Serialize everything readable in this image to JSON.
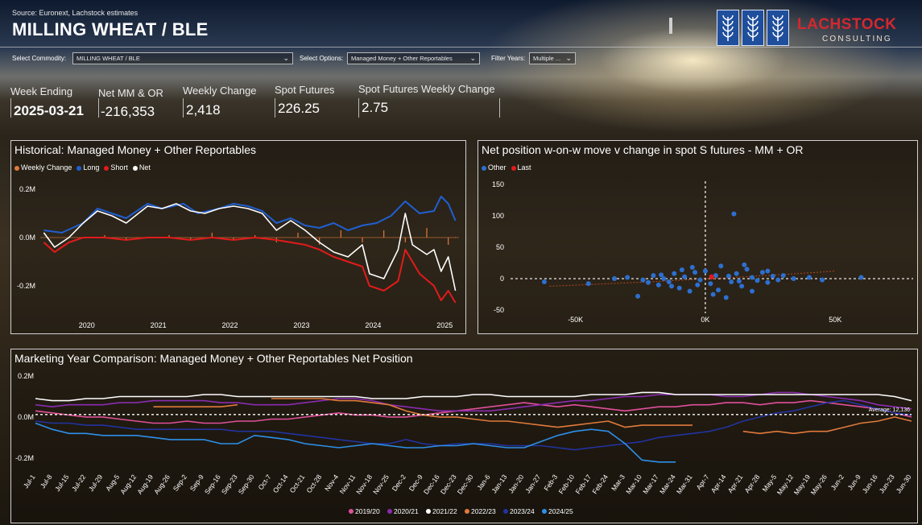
{
  "header": {
    "source": "Source: Euronext, Lachstock estimates",
    "title": "MILLING WHEAT / BLE",
    "logo_name": "LACHSTOCK",
    "logo_sub": "CONSULTING"
  },
  "filters": {
    "commodity_label": "Select Commodity:",
    "commodity_value": "MILLING WHEAT / BLE",
    "options_label": "Select Options:",
    "options_value": "Managed Money + Other Reportables",
    "years_label": "Filter Years:",
    "years_value": "Multiple ..."
  },
  "kpis": [
    {
      "label": "Week Ending",
      "value": "2025-03-21"
    },
    {
      "label": "Net MM & OR",
      "value": "-216,353"
    },
    {
      "label": "Weekly Change",
      "value": "2,418"
    },
    {
      "label": "Spot Futures",
      "value": "226.25"
    },
    {
      "label": "Spot Futures Weekly Change",
      "value": "2.75"
    }
  ],
  "colors": {
    "long": "#1f5fd1",
    "short": "#e01b1b",
    "net": "#ffffff",
    "weekly_change": "#e07a3c",
    "other": "#2d6fcf",
    "last": "#e01b1b",
    "y2019_20": "#e0509a",
    "y2020_21": "#8a2cb0",
    "y2021_22": "#ffffff",
    "y2022_23": "#e07a3c",
    "y2023_24": "#2233a0",
    "y2024_25": "#2d8fe8"
  },
  "chart_data": [
    {
      "type": "line",
      "title": "Historical: Managed Money + Other Reportables",
      "x": [
        "2020",
        "2021",
        "2022",
        "2023",
        "2024",
        "2025"
      ],
      "xlim": [
        2019.4,
        2025.25
      ],
      "ylim": [
        -0.3,
        0.24
      ],
      "yticks": [
        "0.2M",
        "0.0M",
        "-0.2M"
      ],
      "ytick_values": [
        0.2,
        0.0,
        -0.2
      ],
      "legend": "top-left",
      "series": [
        {
          "name": "Weekly Change",
          "x": [
            2019.45,
            2019.7,
            2020.0,
            2020.3,
            2020.6,
            2020.9,
            2021.2,
            2021.5,
            2021.8,
            2022.1,
            2022.4,
            2022.7,
            2023.0,
            2023.3,
            2023.6,
            2023.9,
            2024.2,
            2024.5,
            2024.8,
            2025.1,
            2025.2
          ],
          "values": [
            0.0,
            0.0,
            0.0,
            0.01,
            -0.01,
            0.0,
            0.01,
            -0.01,
            0.02,
            -0.01,
            0.01,
            -0.02,
            0.02,
            -0.03,
            0.03,
            -0.02,
            0.03,
            -0.02,
            0.04,
            -0.03,
            0.002
          ]
        },
        {
          "name": "Long",
          "x": [
            2019.45,
            2019.7,
            2020.0,
            2020.2,
            2020.4,
            2020.6,
            2020.9,
            2021.1,
            2021.4,
            2021.6,
            2021.9,
            2022.1,
            2022.3,
            2022.5,
            2022.7,
            2022.9,
            2023.1,
            2023.3,
            2023.5,
            2023.7,
            2023.9,
            2024.1,
            2024.3,
            2024.5,
            2024.7,
            2024.9,
            2025.0,
            2025.1,
            2025.2
          ],
          "values": [
            0.03,
            0.02,
            0.06,
            0.12,
            0.1,
            0.08,
            0.14,
            0.12,
            0.14,
            0.1,
            0.12,
            0.14,
            0.13,
            0.11,
            0.06,
            0.08,
            0.05,
            0.04,
            0.06,
            0.03,
            0.05,
            0.06,
            0.09,
            0.15,
            0.1,
            0.11,
            0.17,
            0.14,
            0.07
          ]
        },
        {
          "name": "Short",
          "x": [
            2019.45,
            2019.6,
            2019.8,
            2020.0,
            2020.3,
            2020.6,
            2020.9,
            2021.2,
            2021.5,
            2021.8,
            2022.1,
            2022.4,
            2022.7,
            2022.9,
            2023.1,
            2023.3,
            2023.5,
            2023.7,
            2023.9,
            2024.0,
            2024.2,
            2024.4,
            2024.5,
            2024.7,
            2024.9,
            2025.0,
            2025.1,
            2025.2
          ],
          "values": [
            -0.02,
            -0.06,
            -0.02,
            0.0,
            0.0,
            -0.01,
            0.0,
            0.0,
            -0.01,
            0.0,
            -0.01,
            0.0,
            -0.01,
            -0.02,
            -0.03,
            -0.05,
            -0.08,
            -0.1,
            -0.12,
            -0.2,
            -0.22,
            -0.18,
            -0.05,
            -0.15,
            -0.2,
            -0.26,
            -0.22,
            -0.27
          ]
        },
        {
          "name": "Net",
          "x": [
            2019.45,
            2019.6,
            2019.8,
            2020.0,
            2020.2,
            2020.4,
            2020.6,
            2020.9,
            2021.1,
            2021.3,
            2021.5,
            2021.7,
            2021.9,
            2022.1,
            2022.3,
            2022.5,
            2022.7,
            2022.9,
            2023.1,
            2023.3,
            2023.5,
            2023.7,
            2023.9,
            2024.0,
            2024.2,
            2024.4,
            2024.5,
            2024.6,
            2024.8,
            2024.9,
            2025.0,
            2025.1,
            2025.2
          ],
          "values": [
            0.02,
            -0.04,
            0.0,
            0.06,
            0.11,
            0.09,
            0.06,
            0.13,
            0.12,
            0.14,
            0.11,
            0.1,
            0.12,
            0.13,
            0.12,
            0.1,
            0.03,
            0.07,
            0.03,
            -0.02,
            -0.06,
            -0.08,
            -0.03,
            -0.15,
            -0.17,
            -0.05,
            0.1,
            -0.03,
            -0.07,
            -0.05,
            -0.14,
            -0.08,
            -0.22
          ]
        }
      ]
    },
    {
      "type": "scatter",
      "title": "Net position w-on-w move v change in spot S futures - MM + OR",
      "x": [
        -50000,
        0,
        50000
      ],
      "xticks": [
        "-50K",
        "0K",
        "50K"
      ],
      "yticks": [
        "150",
        "100",
        "50",
        "0",
        "-50"
      ],
      "ytick_values": [
        150,
        100,
        50,
        0,
        -50
      ],
      "xlim": [
        -75000,
        80000
      ],
      "ylim": [
        -55,
        155
      ],
      "legend": "top-left",
      "series": [
        {
          "name": "Other",
          "points": [
            [
              -62000,
              -5
            ],
            [
              -45000,
              -8
            ],
            [
              -30000,
              2
            ],
            [
              -26000,
              -28
            ],
            [
              -24000,
              -2
            ],
            [
              -20000,
              5
            ],
            [
              -18000,
              -10
            ],
            [
              -16000,
              0
            ],
            [
              -14000,
              -5
            ],
            [
              -12000,
              8
            ],
            [
              -10000,
              -15
            ],
            [
              -8000,
              3
            ],
            [
              -6000,
              -20
            ],
            [
              -4000,
              10
            ],
            [
              -2000,
              -2
            ],
            [
              0,
              12
            ],
            [
              2000,
              -8
            ],
            [
              4000,
              5
            ],
            [
              6000,
              20
            ],
            [
              8000,
              -30
            ],
            [
              10000,
              -5
            ],
            [
              12000,
              8
            ],
            [
              14000,
              -12
            ],
            [
              16000,
              15
            ],
            [
              18000,
              2
            ],
            [
              20000,
              -3
            ],
            [
              22000,
              10
            ],
            [
              24000,
              -6
            ],
            [
              26000,
              4
            ],
            [
              28000,
              -2
            ],
            [
              30000,
              5
            ],
            [
              34000,
              0
            ],
            [
              11000,
              103
            ],
            [
              -3000,
              -10
            ],
            [
              5000,
              -18
            ],
            [
              -9000,
              14
            ],
            [
              15000,
              22
            ],
            [
              -22000,
              -6
            ],
            [
              3000,
              -25
            ],
            [
              9000,
              4
            ],
            [
              -13000,
              -12
            ],
            [
              18000,
              -20
            ],
            [
              -35000,
              0
            ],
            [
              40000,
              2
            ],
            [
              45000,
              -2
            ],
            [
              60000,
              2
            ],
            [
              -17000,
              6
            ],
            [
              24000,
              12
            ],
            [
              13000,
              -4
            ],
            [
              -5000,
              18
            ]
          ]
        },
        {
          "name": "Last",
          "points": [
            [
              2418,
              2.75
            ]
          ]
        }
      ]
    },
    {
      "type": "line",
      "title": "Marketing Year Comparison: Managed Money + Other Reportables Net Position",
      "categories": [
        "Jul-1",
        "Jul-8",
        "Jul-15",
        "Jul-22",
        "Jul-29",
        "Aug-5",
        "Aug-12",
        "Aug-19",
        "Aug-26",
        "Sep-2",
        "Sep-9",
        "Sep-16",
        "Sep-23",
        "Sep-30",
        "Oct-7",
        "Oct-14",
        "Oct-21",
        "Oct-28",
        "Nov-4",
        "Nov-11",
        "Nov-18",
        "Nov-25",
        "Dec-2",
        "Dec-9",
        "Dec-16",
        "Dec-23",
        "Dec-30",
        "Jan-6",
        "Jan-13",
        "Jan-20",
        "Jan-27",
        "Feb-3",
        "Feb-10",
        "Feb-17",
        "Feb-24",
        "Mar-3",
        "Mar-10",
        "Mar-17",
        "Mar-24",
        "Mar-31",
        "Apr-7",
        "Apr-14",
        "Apr-21",
        "Apr-28",
        "May-5",
        "May-12",
        "May-19",
        "May-26",
        "Jun-2",
        "Jun-9",
        "Jun-16",
        "Jun-23",
        "Jun-30"
      ],
      "yticks": [
        "0.2M",
        "0.0M",
        "-0.2M"
      ],
      "ytick_values": [
        0.2,
        0.0,
        -0.2
      ],
      "ylim": [
        -0.26,
        0.22
      ],
      "reference_line": {
        "label": "Average: 12,136",
        "value": 0.012136
      },
      "legend": "bottom",
      "series": [
        {
          "name": "2019/20",
          "values": [
            0.03,
            0.02,
            0.01,
            0.0,
            0.0,
            -0.01,
            -0.02,
            -0.03,
            -0.03,
            -0.02,
            -0.03,
            -0.03,
            -0.02,
            -0.02,
            -0.01,
            -0.01,
            0.0,
            0.01,
            0.02,
            0.01,
            0.01,
            0.0,
            0.0,
            0.01,
            0.02,
            0.03,
            0.04,
            0.05,
            0.06,
            0.07,
            0.06,
            0.05,
            0.06,
            0.05,
            0.04,
            0.03,
            0.04,
            0.05,
            0.05,
            0.06,
            0.06,
            0.07,
            0.07,
            0.06,
            0.07,
            0.07,
            0.08,
            0.07,
            0.06,
            0.05,
            0.04,
            0.02,
            0.0
          ]
        },
        {
          "name": "2020/21",
          "values": [
            0.06,
            0.05,
            0.06,
            0.06,
            0.06,
            0.07,
            0.07,
            0.08,
            0.08,
            0.08,
            0.08,
            0.07,
            0.07,
            0.06,
            0.06,
            0.06,
            0.07,
            0.08,
            0.09,
            0.09,
            0.08,
            0.06,
            0.05,
            0.04,
            0.03,
            0.03,
            0.03,
            0.03,
            0.04,
            0.05,
            0.06,
            0.07,
            0.08,
            0.08,
            0.09,
            0.1,
            0.1,
            0.11,
            0.11,
            0.11,
            0.11,
            0.1,
            0.1,
            0.11,
            0.12,
            0.12,
            0.11,
            0.1,
            0.09,
            0.08,
            0.06,
            0.05,
            0.04
          ]
        },
        {
          "name": "2021/22",
          "values": [
            0.09,
            0.08,
            0.08,
            0.09,
            0.09,
            0.1,
            0.1,
            0.1,
            0.1,
            0.1,
            0.11,
            0.11,
            0.1,
            0.1,
            0.1,
            0.1,
            0.1,
            0.1,
            0.1,
            0.1,
            0.09,
            0.09,
            0.09,
            0.1,
            0.1,
            0.1,
            0.11,
            0.11,
            0.1,
            0.1,
            0.1,
            0.1,
            0.1,
            0.11,
            0.11,
            0.11,
            0.12,
            0.12,
            0.11,
            0.11,
            0.11,
            0.11,
            0.11,
            0.11,
            0.11,
            0.11,
            0.11,
            0.11,
            0.11,
            0.11,
            0.11,
            0.1,
            0.08
          ]
        },
        {
          "name": "2022/23",
          "values": [
            null,
            null,
            null,
            null,
            null,
            null,
            null,
            0.05,
            0.05,
            0.05,
            0.05,
            0.05,
            0.06,
            null,
            0.09,
            0.09,
            0.09,
            0.09,
            0.08,
            0.08,
            0.07,
            0.06,
            0.03,
            0.01,
            0.0,
            0.0,
            -0.01,
            -0.02,
            -0.02,
            -0.03,
            -0.04,
            -0.05,
            -0.04,
            -0.03,
            -0.02,
            -0.05,
            -0.04,
            -0.04,
            -0.04,
            -0.04,
            null,
            null,
            -0.07,
            -0.08,
            -0.07,
            -0.08,
            -0.07,
            -0.07,
            -0.05,
            -0.03,
            -0.02,
            0.0,
            -0.02
          ]
        },
        {
          "name": "2023/24",
          "values": [
            -0.02,
            -0.03,
            -0.03,
            -0.04,
            -0.04,
            -0.05,
            -0.06,
            -0.06,
            -0.06,
            -0.06,
            -0.06,
            -0.06,
            -0.07,
            -0.07,
            -0.07,
            -0.08,
            -0.09,
            -0.1,
            -0.11,
            -0.12,
            -0.13,
            -0.13,
            -0.11,
            -0.13,
            -0.14,
            -0.13,
            -0.13,
            -0.13,
            -0.14,
            -0.14,
            -0.14,
            -0.15,
            -0.16,
            -0.15,
            -0.14,
            -0.13,
            -0.12,
            -0.1,
            -0.09,
            -0.08,
            -0.07,
            -0.05,
            -0.02,
            0.0,
            0.02,
            0.03,
            0.05,
            0.07,
            0.08,
            0.06,
            0.04,
            0.02,
            0.01
          ]
        },
        {
          "name": "2024/25",
          "values": [
            -0.03,
            -0.06,
            -0.08,
            -0.08,
            -0.09,
            -0.09,
            -0.09,
            -0.1,
            -0.11,
            -0.11,
            -0.11,
            -0.13,
            -0.13,
            -0.09,
            -0.1,
            -0.11,
            -0.13,
            -0.14,
            -0.15,
            -0.14,
            -0.13,
            -0.14,
            -0.15,
            -0.15,
            -0.14,
            -0.14,
            -0.13,
            -0.14,
            -0.15,
            -0.15,
            -0.12,
            -0.09,
            -0.07,
            -0.06,
            -0.07,
            -0.13,
            -0.21,
            -0.22,
            -0.22,
            null,
            null,
            null,
            null,
            null,
            null,
            null,
            null,
            null,
            null,
            null,
            null,
            null,
            null
          ]
        }
      ]
    }
  ]
}
